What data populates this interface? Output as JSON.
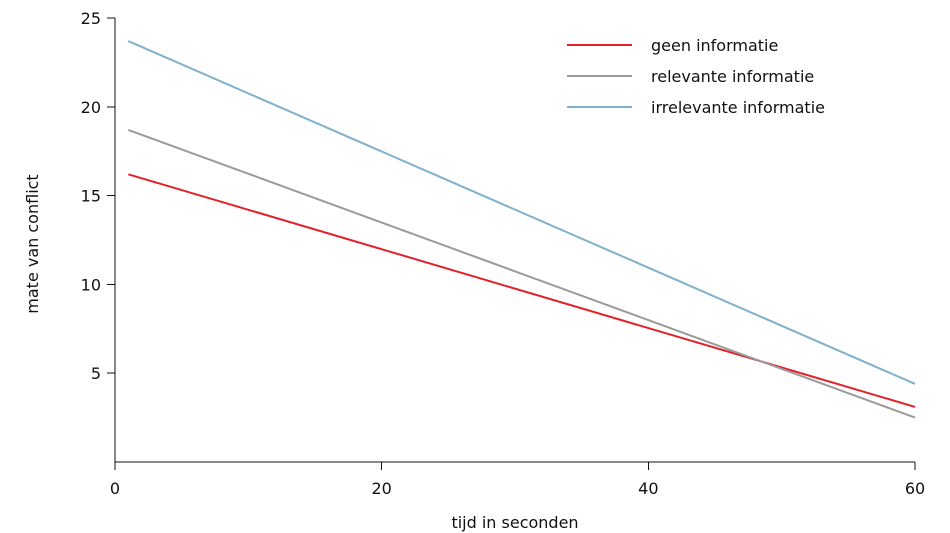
{
  "chart_data": {
    "type": "line",
    "title": "",
    "xlabel": "tijd in seconden",
    "ylabel": "mate van conflict",
    "xlim": [
      0,
      60
    ],
    "ylim": [
      0,
      25
    ],
    "x_ticks": [
      0,
      20,
      40,
      60
    ],
    "y_ticks": [
      5,
      10,
      15,
      20,
      25
    ],
    "grid": false,
    "legend_position": "top-right",
    "series": [
      {
        "name": "geen informatie",
        "color": "#e3202a",
        "x": [
          1,
          60
        ],
        "y": [
          16.2,
          3.1
        ]
      },
      {
        "name": "relevante informatie",
        "color": "#9a9a9a",
        "x": [
          1,
          60
        ],
        "y": [
          18.7,
          2.5
        ]
      },
      {
        "name": "irrelevante informatie",
        "color": "#7fb1cc",
        "x": [
          1,
          60
        ],
        "y": [
          23.7,
          4.4
        ]
      }
    ]
  }
}
